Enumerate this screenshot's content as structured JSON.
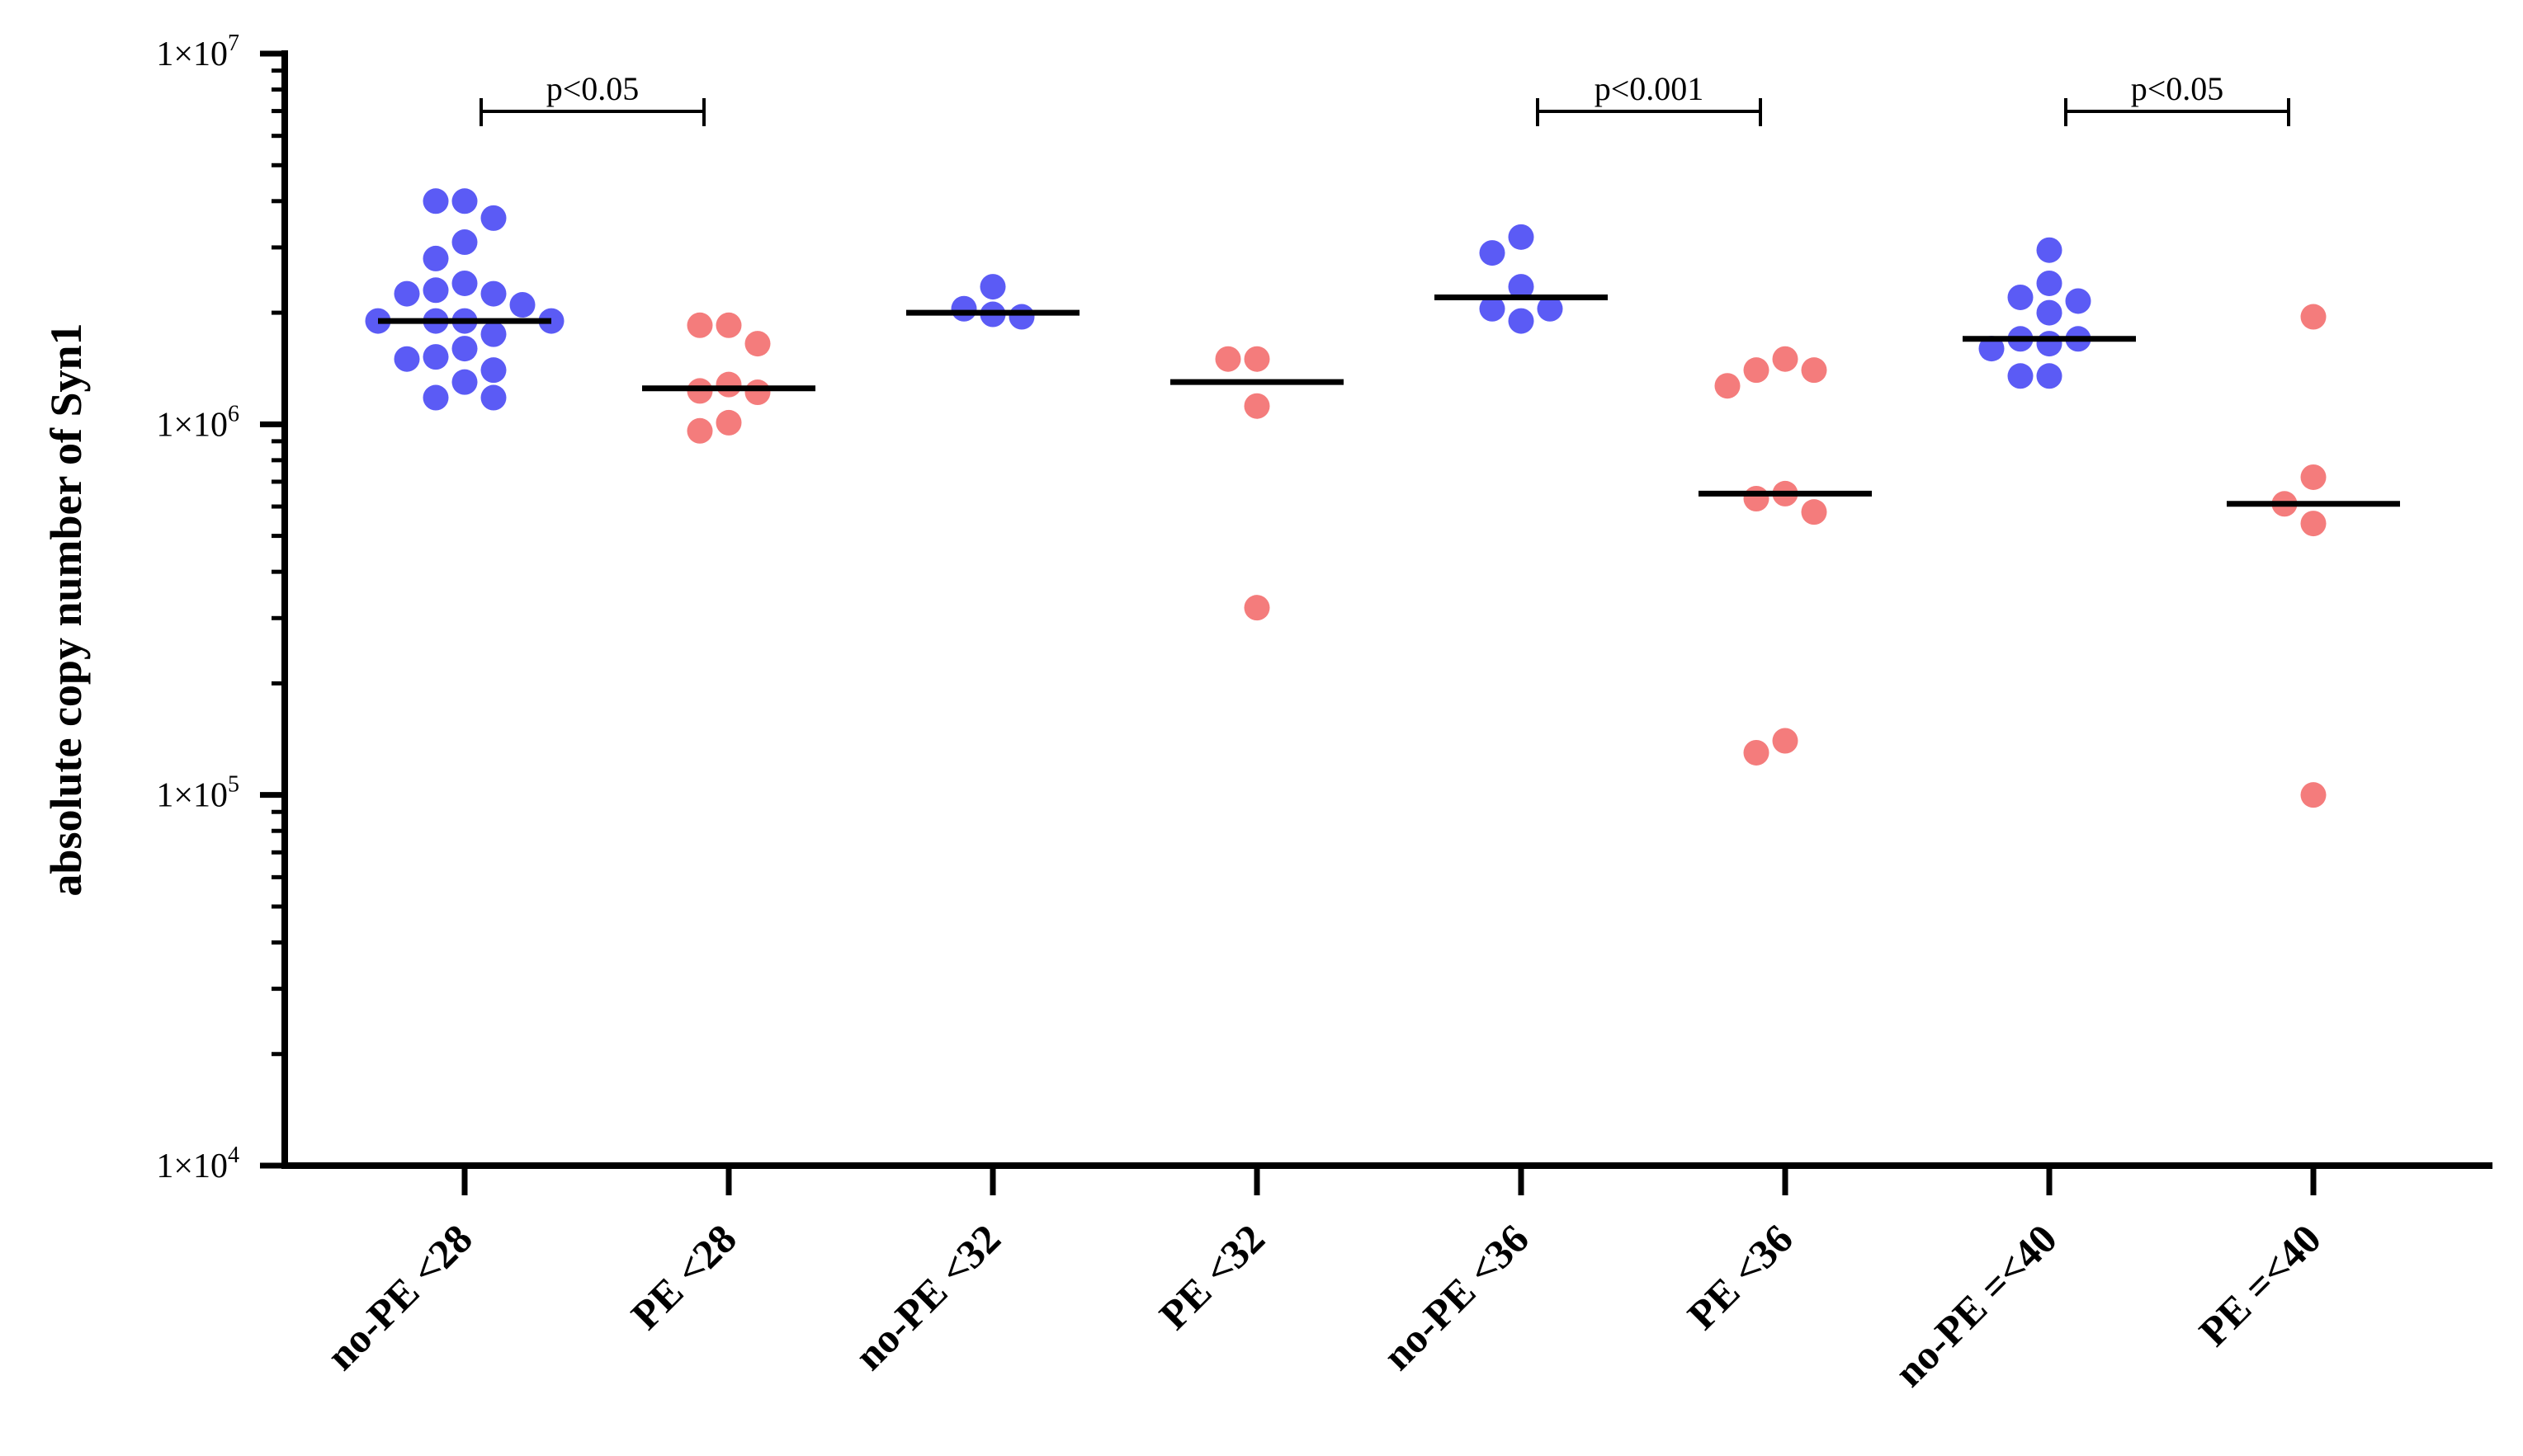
{
  "chart_data": {
    "type": "scatter",
    "subtype": "dot-plot-with-median",
    "title": "",
    "xlabel": "",
    "ylabel": "absolute copy number of Syn1",
    "yscale": "log",
    "ylim": [
      10000,
      10000000
    ],
    "yticks": [
      {
        "value": 10000,
        "mantissa": "1×10",
        "exp": "4"
      },
      {
        "value": 100000,
        "mantissa": "1×10",
        "exp": "5"
      },
      {
        "value": 1000000,
        "mantissa": "1×10",
        "exp": "6"
      },
      {
        "value": 10000000,
        "mantissa": "1×10",
        "exp": "7"
      }
    ],
    "grid": false,
    "colors": {
      "no-PE": "#5b5bf5",
      "PE": "#f47c7c",
      "median": "#000000",
      "axis": "#000000"
    },
    "groups": [
      {
        "label": "no-PE <28",
        "color_key": "no-PE",
        "median": 1900000,
        "values": [
          4000000,
          4000000,
          3600000,
          3100000,
          2800000,
          2400000,
          2250000,
          2250000,
          2100000,
          2300000,
          1900000,
          1900000,
          1900000,
          1900000,
          1750000,
          1600000,
          1520000,
          1500000,
          1400000,
          1300000,
          1180000,
          1180000
        ]
      },
      {
        "label": "PE <28",
        "color_key": "PE",
        "median": 1250000,
        "values": [
          1850000,
          1850000,
          1650000,
          1280000,
          1230000,
          1220000,
          1010000,
          960000
        ]
      },
      {
        "label": "no-PE <32",
        "color_key": "no-PE",
        "median": 2000000,
        "values": [
          2350000,
          2050000,
          1980000,
          1950000
        ]
      },
      {
        "label": "PE <32",
        "color_key": "PE",
        "median": 1300000,
        "values": [
          1500000,
          1500000,
          1120000,
          320000
        ]
      },
      {
        "label": "no-PE <36",
        "color_key": "no-PE",
        "median": 2200000,
        "values": [
          3200000,
          2900000,
          2350000,
          2050000,
          2050000,
          1900000
        ]
      },
      {
        "label": "PE <36",
        "color_key": "PE",
        "median": 650000,
        "values": [
          1500000,
          1400000,
          1400000,
          1270000,
          650000,
          630000,
          580000,
          140000,
          130000
        ]
      },
      {
        "label": "no-PE =<40",
        "color_key": "no-PE",
        "median": 1700000,
        "values": [
          2950000,
          2400000,
          2200000,
          2150000,
          2000000,
          1700000,
          1700000,
          1650000,
          1600000,
          1350000,
          1350000
        ]
      },
      {
        "label": "PE =<40",
        "color_key": "PE",
        "median": 610000,
        "values": [
          1950000,
          720000,
          610000,
          540000,
          100000
        ]
      }
    ],
    "comparisons": [
      {
        "from": 0,
        "to": 1,
        "label": "p<0.05"
      },
      {
        "from": 4,
        "to": 5,
        "label": "p<0.001"
      },
      {
        "from": 6,
        "to": 7,
        "label": "p<0.05"
      }
    ]
  }
}
